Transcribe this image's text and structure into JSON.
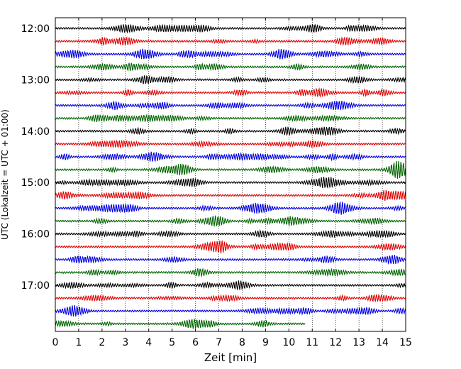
{
  "chart_data": {
    "type": "line",
    "title": "",
    "xlabel": "Zeit  [min]",
    "ylabel": "UTC (Lokalzeit = UTC + 01:00)",
    "xlim": [
      0,
      15
    ],
    "x_ticks": [
      "0",
      "1",
      "2",
      "3",
      "4",
      "5",
      "6",
      "7",
      "8",
      "9",
      "10",
      "11",
      "12",
      "13",
      "14",
      "15"
    ],
    "y_ticks": [
      "12:00",
      "13:00",
      "14:00",
      "15:00",
      "16:00",
      "17:00"
    ],
    "grid": "vertical dotted at each minute",
    "row_interval_minutes": 15,
    "colors": [
      "#000000",
      "#e00000",
      "#0000e0",
      "#006400"
    ],
    "rows": [
      {
        "start": "12:00",
        "color": "#000000"
      },
      {
        "start": "12:15",
        "color": "#e00000"
      },
      {
        "start": "12:30",
        "color": "#0000e0"
      },
      {
        "start": "12:45",
        "color": "#006400"
      },
      {
        "start": "13:00",
        "color": "#000000"
      },
      {
        "start": "13:15",
        "color": "#e00000"
      },
      {
        "start": "13:30",
        "color": "#0000e0"
      },
      {
        "start": "13:45",
        "color": "#006400"
      },
      {
        "start": "14:00",
        "color": "#000000"
      },
      {
        "start": "14:15",
        "color": "#e00000"
      },
      {
        "start": "14:30",
        "color": "#0000e0"
      },
      {
        "start": "14:45",
        "color": "#006400"
      },
      {
        "start": "15:00",
        "color": "#000000"
      },
      {
        "start": "15:15",
        "color": "#e00000"
      },
      {
        "start": "15:30",
        "color": "#0000e0"
      },
      {
        "start": "15:45",
        "color": "#006400"
      },
      {
        "start": "16:00",
        "color": "#000000"
      },
      {
        "start": "16:15",
        "color": "#e00000"
      },
      {
        "start": "16:30",
        "color": "#0000e0"
      },
      {
        "start": "16:45",
        "color": "#006400"
      },
      {
        "start": "17:00",
        "color": "#000000"
      },
      {
        "start": "17:15",
        "color": "#e00000"
      },
      {
        "start": "17:30",
        "color": "#0000e0"
      },
      {
        "start": "17:45",
        "color": "#006400",
        "end_minute": 10.7
      }
    ]
  }
}
